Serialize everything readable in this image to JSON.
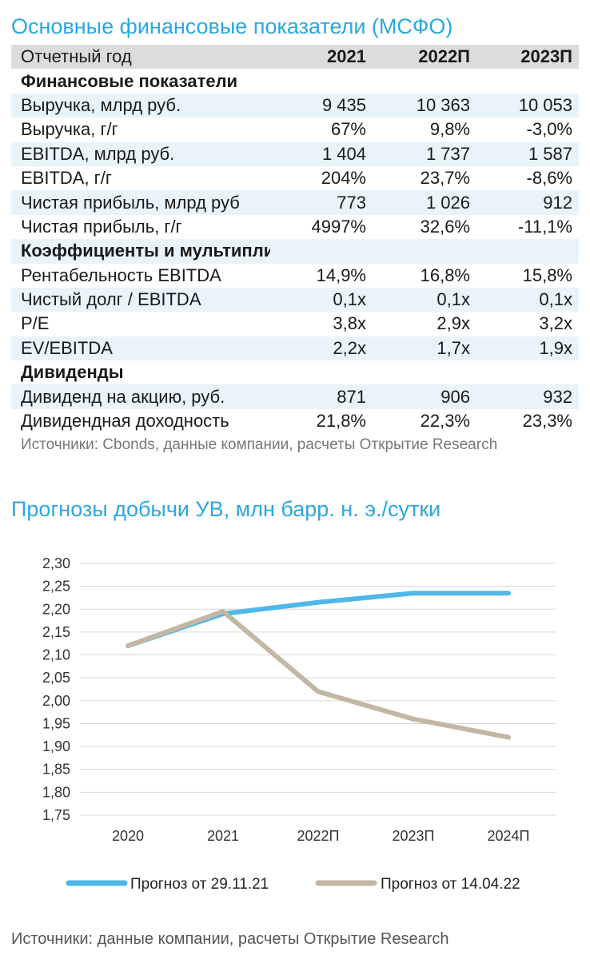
{
  "table": {
    "title": "Основные финансовые показатели (МСФО)",
    "header": {
      "label": "Отчетный год",
      "cols": [
        "2021",
        "2022П",
        "2023П"
      ]
    },
    "rows": [
      {
        "type": "section",
        "label": "Финансовые показатели",
        "values": [
          "",
          "",
          ""
        ]
      },
      {
        "type": "data",
        "label": "Выручка, млрд руб.",
        "values": [
          "9 435",
          "10 363",
          "10 053"
        ]
      },
      {
        "type": "data",
        "label": "Выручка, г/г",
        "values": [
          "67%",
          "9,8%",
          "-3,0%"
        ]
      },
      {
        "type": "data",
        "label": "EBITDA, млрд руб.",
        "values": [
          "1 404",
          "1 737",
          "1 587"
        ]
      },
      {
        "type": "data",
        "label": "EBITDA, г/г",
        "values": [
          "204%",
          "23,7%",
          "-8,6%"
        ]
      },
      {
        "type": "data",
        "label": "Чистая прибыль, млрд руб",
        "values": [
          "773",
          "1 026",
          "912"
        ]
      },
      {
        "type": "data",
        "label": "Чистая прибыль, г/г",
        "values": [
          "4997%",
          "32,6%",
          "-11,1%"
        ]
      },
      {
        "type": "section",
        "label": "Коэффициенты и мультипликаторы",
        "values": [
          "",
          "",
          ""
        ]
      },
      {
        "type": "data",
        "label": "Рентабельность EBITDA",
        "values": [
          "14,9%",
          "16,8%",
          "15,8%"
        ]
      },
      {
        "type": "data",
        "label": "Чистый долг / EBITDA",
        "values": [
          "0,1x",
          "0,1x",
          "0,1x"
        ]
      },
      {
        "type": "data",
        "label": "P/E",
        "values": [
          "3,8x",
          "2,9x",
          "3,2x"
        ]
      },
      {
        "type": "data",
        "label": "EV/EBITDA",
        "values": [
          "2,2x",
          "1,7x",
          "1,9x"
        ]
      },
      {
        "type": "section",
        "label": "Дивиденды",
        "values": [
          "",
          "",
          ""
        ]
      },
      {
        "type": "data",
        "label": "Дивиденд на акцию, руб.",
        "values": [
          "871",
          "906",
          "932"
        ]
      },
      {
        "type": "data",
        "label": "Дивидендная доходность",
        "values": [
          "21,8%",
          "22,3%",
          "23,3%"
        ]
      }
    ],
    "source": "Источники: Cbonds, данные компании, расчеты Открытие Research",
    "colors": {
      "title": "#2aa8de",
      "header_bg": "#dcdcdc",
      "stripe": "#e8f3fa"
    }
  },
  "chart_data": {
    "type": "line",
    "title": "Прогнозы добычи УВ, млн барр. н. э./сутки",
    "categories": [
      "2020",
      "2021",
      "2022П",
      "2023П",
      "2024П"
    ],
    "series": [
      {
        "name": "Прогноз от 29.11.21",
        "color": "#4fb8e8",
        "values": [
          2.12,
          2.19,
          2.215,
          2.235,
          2.235
        ]
      },
      {
        "name": "Прогноз от 14.04.22",
        "color": "#c2b6a4",
        "values": [
          2.12,
          2.195,
          2.02,
          1.96,
          1.92
        ]
      }
    ],
    "yticks": [
      "2,30",
      "2,25",
      "2,20",
      "2,15",
      "2,10",
      "2,05",
      "2,00",
      "1,95",
      "1,90",
      "1,85",
      "1,80",
      "1,75"
    ],
    "ylim": [
      1.75,
      2.3
    ],
    "ystep": 0.05,
    "grid": true,
    "legend": "bottom",
    "source": "Источники: данные компании, расчеты Открытие Research"
  }
}
